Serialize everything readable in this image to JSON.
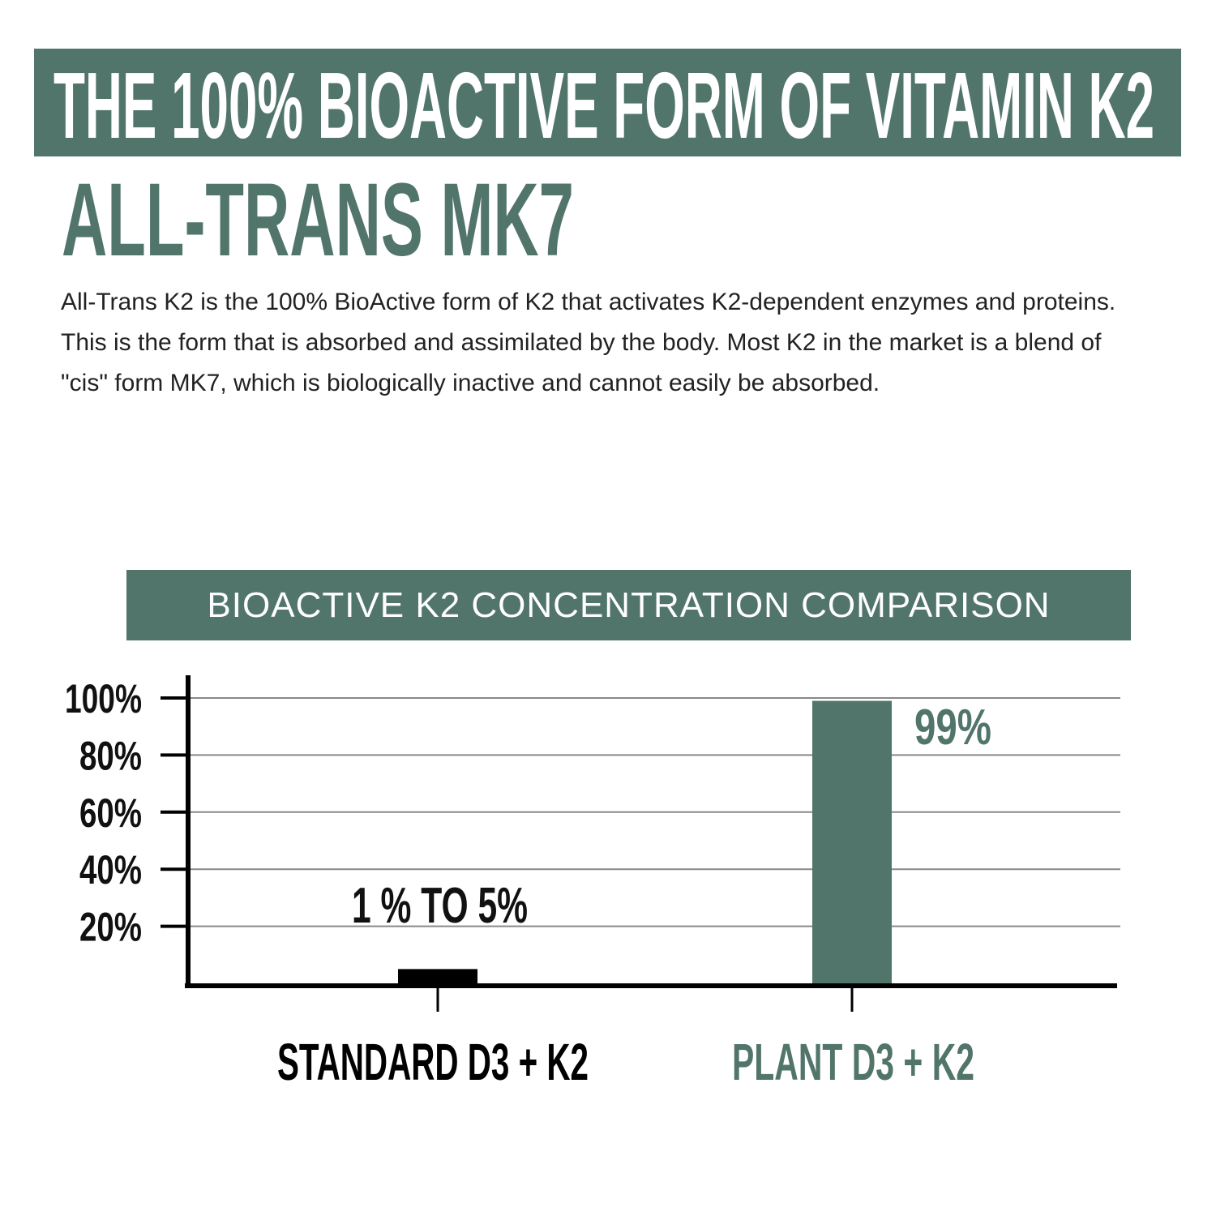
{
  "header": {
    "title": "THE 100% BIOACTIVE FORM OF VITAMIN K2",
    "subtitle": "ALL-TRANS MK7",
    "paragraph": "All-Trans K2 is the 100% BioActive form of K2 that activates K2-dependent enzymes and proteins. This is the form that is absorbed and assimilated by the body. Most K2 in the market is a blend of \"cis\" form MK7, which is biologically inactive and cannot easily be absorbed."
  },
  "colors": {
    "accent": "#52756b",
    "standard": "#000000",
    "grid": "#888888"
  },
  "chart_data": {
    "type": "bar",
    "title": "BIOACTIVE K2 CONCENTRATION COMPARISON",
    "categories": [
      "STANDARD D3 + K2",
      "PLANT D3 + K2"
    ],
    "values": [
      5,
      99
    ],
    "data_labels": [
      "1 % TO 5%",
      "99%"
    ],
    "bar_colors": [
      "#000000",
      "#52756b"
    ],
    "ylim": [
      0,
      100
    ],
    "yticks": [
      "20%",
      "40%",
      "60%",
      "80%",
      "100%"
    ],
    "ytick_values": [
      20,
      40,
      60,
      80,
      100
    ],
    "grid": true,
    "xlabel": "",
    "ylabel": ""
  }
}
